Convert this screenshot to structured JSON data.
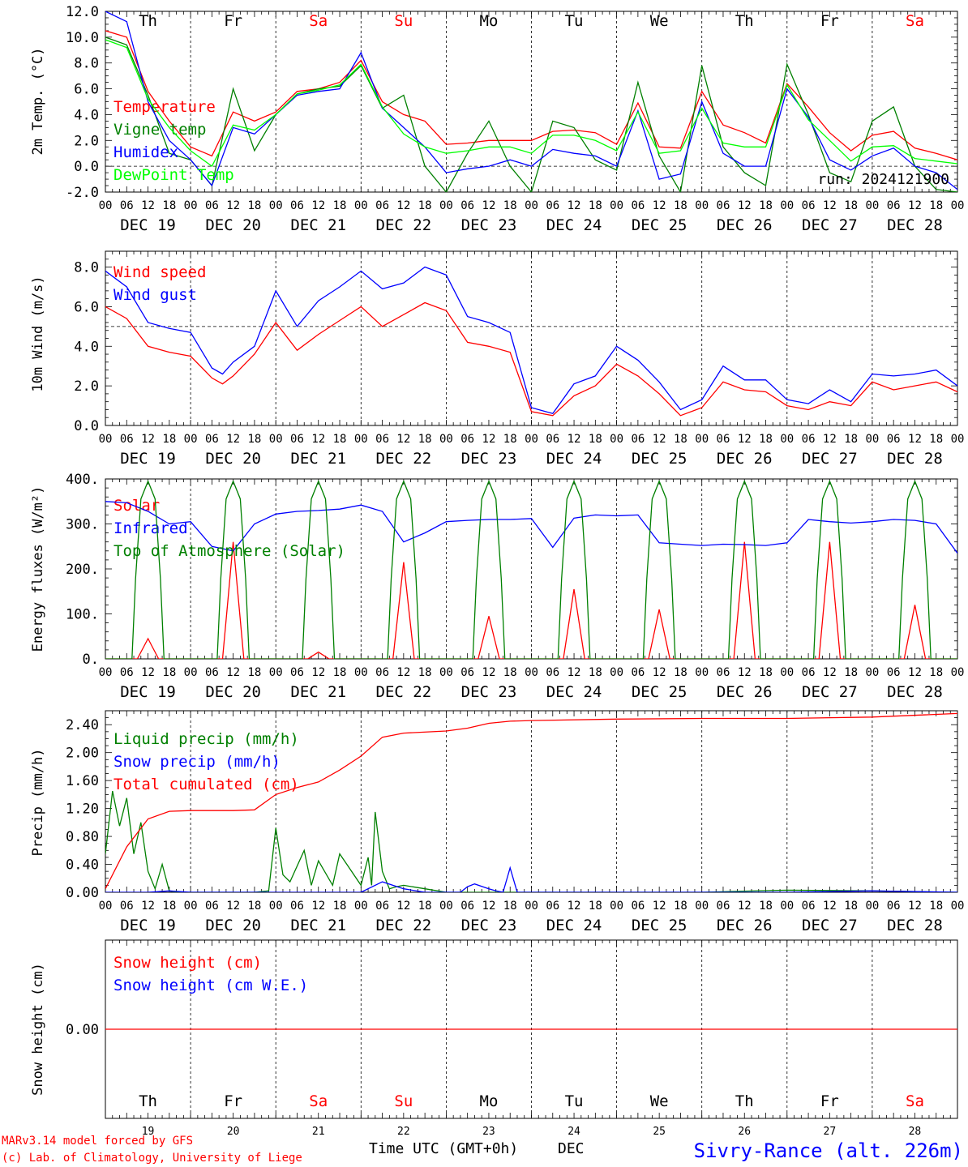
{
  "colors": {
    "red": "#ff0000",
    "dark_green": "#008000",
    "blue": "#0000ff",
    "light_green": "#00ff00",
    "black": "#000000"
  },
  "day_labels": [
    "Th",
    "Fr",
    "Sa",
    "Su",
    "Mo",
    "Tu",
    "We",
    "Th",
    "Fr",
    "Sa"
  ],
  "day_label_colors": [
    "black",
    "black",
    "red",
    "red",
    "black",
    "black",
    "black",
    "black",
    "black",
    "red"
  ],
  "date_labels": [
    "DEC 19",
    "DEC 20",
    "DEC 21",
    "DEC 22",
    "DEC 23",
    "DEC 24",
    "DEC 25",
    "DEC 26",
    "DEC 27",
    "DEC 28"
  ],
  "hour_labels": [
    "00",
    "06",
    "12",
    "18"
  ],
  "final_hour_label": "00",
  "bottom_day_numbers": [
    "19",
    "20",
    "21",
    "22",
    "23",
    "24",
    "25",
    "26",
    "27",
    "28"
  ],
  "footer": {
    "credit_line1": "MARv3.14 model forced by GFS",
    "credit_line2": "(c) Lab. of Climatology, University of Liege",
    "xaxis_title": "Time UTC (GMT+0h)",
    "xaxis_month": "DEC",
    "station": "Sivry-Rance (alt. 226m)"
  },
  "chart_data": [
    {
      "type": "line",
      "ylabel": "2m Temp. (°C)",
      "ylim": [
        -2,
        12
      ],
      "yticks": [
        "-2.0",
        "0.0",
        "2.0",
        "4.0",
        "6.0",
        "8.0",
        "10.0",
        "12.0"
      ],
      "ref_line": 0,
      "annotation": "run: 2024121900",
      "x_unit": "hours since DEC 19 00 UTC",
      "series": [
        {
          "name": "Temperature",
          "color": "red",
          "x": [
            0,
            6,
            12,
            18,
            24,
            30,
            36,
            42,
            48,
            54,
            60,
            66,
            72,
            78,
            84,
            90,
            96,
            102,
            108,
            114,
            120,
            126,
            132,
            138,
            144,
            150,
            156,
            162,
            168,
            174,
            180,
            186,
            192,
            198,
            204,
            210,
            216,
            222,
            228,
            234,
            240
          ],
          "y": [
            10.5,
            10.0,
            5.8,
            3.5,
            1.5,
            0.8,
            4.2,
            3.5,
            4.2,
            5.8,
            6.0,
            6.5,
            8.2,
            5.0,
            4.0,
            3.5,
            1.7,
            1.8,
            2.0,
            2.0,
            2.0,
            2.7,
            2.8,
            2.6,
            1.7,
            4.9,
            1.5,
            1.4,
            5.8,
            3.2,
            2.6,
            1.8,
            6.4,
            4.6,
            2.6,
            1.2,
            2.4,
            2.7,
            1.4,
            1.0,
            0.5
          ]
        },
        {
          "name": "Vigne temp",
          "color": "dark_green",
          "x": [
            0,
            6,
            12,
            18,
            24,
            30,
            36,
            42,
            48,
            54,
            60,
            66,
            72,
            78,
            84,
            90,
            96,
            102,
            108,
            114,
            120,
            126,
            132,
            138,
            144,
            150,
            156,
            162,
            168,
            174,
            180,
            186,
            192,
            198,
            204,
            210,
            216,
            222,
            228,
            234,
            240
          ],
          "y": [
            10.0,
            9.4,
            5.5,
            1.0,
            0.5,
            -1.5,
            6.0,
            1.2,
            4.0,
            5.6,
            6.0,
            6.2,
            7.8,
            4.5,
            5.5,
            0.0,
            -2.0,
            1.0,
            3.5,
            0.0,
            -2.0,
            3.5,
            3.0,
            0.5,
            -0.3,
            6.5,
            0.8,
            -2.0,
            7.8,
            1.5,
            -0.5,
            -1.5,
            7.9,
            4.0,
            -0.5,
            -1.2,
            3.5,
            4.6,
            0.0,
            -1.8,
            -2.0
          ]
        },
        {
          "name": "Humidex",
          "color": "blue",
          "x": [
            0,
            6,
            12,
            18,
            24,
            30,
            36,
            42,
            48,
            54,
            60,
            66,
            72,
            78,
            84,
            90,
            96,
            102,
            108,
            114,
            120,
            126,
            132,
            138,
            144,
            150,
            156,
            162,
            168,
            174,
            180,
            186,
            192,
            198,
            204,
            210,
            216,
            222,
            228,
            234,
            240
          ],
          "y": [
            12.0,
            11.2,
            5.0,
            2.0,
            0.5,
            -1.5,
            3.0,
            2.5,
            4.0,
            5.5,
            5.8,
            6.0,
            8.8,
            4.5,
            3.0,
            1.5,
            -0.5,
            -0.2,
            0.0,
            0.5,
            0.0,
            1.3,
            1.0,
            0.8,
            0.0,
            4.3,
            -1.0,
            -0.6,
            5.0,
            1.0,
            0.0,
            0.0,
            6.0,
            3.8,
            0.5,
            -0.3,
            0.8,
            1.4,
            0.0,
            -0.5,
            -1.8
          ]
        },
        {
          "name": "DewPoint Temp",
          "color": "light_green",
          "x": [
            0,
            6,
            12,
            18,
            24,
            30,
            36,
            42,
            48,
            54,
            60,
            66,
            72,
            78,
            84,
            90,
            96,
            102,
            108,
            114,
            120,
            126,
            132,
            138,
            144,
            150,
            156,
            162,
            168,
            174,
            180,
            186,
            192,
            198,
            204,
            210,
            216,
            222,
            228,
            234,
            240
          ],
          "y": [
            9.8,
            9.2,
            5.2,
            3.0,
            1.2,
            0.0,
            3.2,
            2.8,
            4.0,
            5.6,
            5.9,
            6.3,
            7.9,
            4.6,
            2.5,
            1.5,
            1.0,
            1.2,
            1.5,
            1.5,
            1.0,
            2.4,
            2.4,
            2.0,
            1.2,
            4.2,
            1.0,
            1.2,
            4.5,
            1.8,
            1.5,
            1.5,
            6.3,
            3.6,
            2.0,
            0.4,
            1.5,
            1.6,
            0.6,
            0.4,
            0.2
          ]
        }
      ]
    },
    {
      "type": "line",
      "ylabel": "10m Wind (m/s)",
      "ylim": [
        0,
        8.8
      ],
      "yticks": [
        "0.0",
        "2.0",
        "4.0",
        "6.0",
        "8.0"
      ],
      "ref_line": 5,
      "series": [
        {
          "name": "Wind speed",
          "color": "red",
          "x": [
            0,
            6,
            12,
            18,
            24,
            30,
            33,
            36,
            42,
            48,
            54,
            60,
            66,
            72,
            78,
            84,
            90,
            96,
            102,
            108,
            114,
            120,
            126,
            132,
            138,
            144,
            150,
            156,
            162,
            168,
            174,
            180,
            186,
            192,
            198,
            204,
            210,
            216,
            222,
            228,
            234,
            240
          ],
          "y": [
            6.0,
            5.4,
            4.0,
            3.7,
            3.5,
            2.4,
            2.1,
            2.5,
            3.6,
            5.2,
            3.8,
            4.6,
            5.3,
            6.0,
            5.0,
            5.6,
            6.2,
            5.8,
            4.2,
            4.0,
            3.7,
            0.7,
            0.5,
            1.5,
            2.0,
            3.1,
            2.5,
            1.6,
            0.5,
            0.9,
            2.2,
            1.8,
            1.7,
            1.0,
            0.8,
            1.2,
            1.0,
            2.2,
            1.8,
            2.0,
            2.2,
            1.7
          ]
        },
        {
          "name": "Wind gust",
          "color": "blue",
          "x": [
            0,
            6,
            12,
            18,
            24,
            30,
            33,
            36,
            42,
            48,
            54,
            60,
            66,
            72,
            78,
            84,
            90,
            96,
            102,
            108,
            114,
            120,
            126,
            132,
            138,
            144,
            150,
            156,
            162,
            168,
            174,
            180,
            186,
            192,
            198,
            204,
            210,
            216,
            222,
            228,
            234,
            240
          ],
          "y": [
            7.8,
            7.0,
            5.2,
            4.9,
            4.7,
            2.9,
            2.6,
            3.2,
            4.0,
            6.8,
            5.0,
            6.3,
            7.0,
            7.8,
            6.9,
            7.2,
            8.0,
            7.6,
            5.5,
            5.2,
            4.7,
            0.9,
            0.6,
            2.1,
            2.5,
            4.0,
            3.3,
            2.2,
            0.8,
            1.3,
            3.0,
            2.3,
            2.3,
            1.3,
            1.1,
            1.8,
            1.2,
            2.6,
            2.5,
            2.6,
            2.8,
            2.0
          ]
        }
      ]
    },
    {
      "type": "line",
      "ylabel": "Energy fluxes (W/m²)",
      "ylim": [
        0,
        400
      ],
      "yticks": [
        "0.",
        "100.",
        "200.",
        "300.",
        "400."
      ],
      "series": [
        {
          "name": "Solar",
          "color": "red",
          "peaks": [
            45,
            260,
            15,
            215,
            95,
            155,
            110,
            260,
            260,
            120
          ]
        },
        {
          "name": "Infrared",
          "color": "blue",
          "x": [
            0,
            6,
            12,
            18,
            24,
            30,
            36,
            42,
            48,
            54,
            60,
            66,
            72,
            78,
            84,
            90,
            96,
            102,
            108,
            114,
            120,
            126,
            132,
            138,
            144,
            150,
            156,
            162,
            168,
            174,
            180,
            186,
            192,
            198,
            204,
            210,
            216,
            222,
            228,
            234,
            240
          ],
          "y": [
            350,
            347,
            328,
            300,
            305,
            250,
            240,
            300,
            322,
            328,
            330,
            333,
            342,
            328,
            260,
            280,
            305,
            308,
            310,
            310,
            312,
            248,
            313,
            320,
            318,
            320,
            258,
            255,
            252,
            255,
            254,
            252,
            258,
            310,
            305,
            302,
            305,
            310,
            308,
            300,
            235
          ]
        },
        {
          "name": "Top of Atmosphere (Solar)",
          "color": "dark_green",
          "peaks": [
            395,
            395,
            395,
            395,
            395,
            395,
            395,
            395,
            395,
            395
          ]
        }
      ]
    },
    {
      "type": "line",
      "ylabel": "Precip (mm/h)",
      "ylim": [
        0,
        2.6
      ],
      "yticks": [
        "0.00",
        "0.40",
        "0.80",
        "1.20",
        "1.60",
        "2.00",
        "2.40"
      ],
      "series": [
        {
          "name": "Liquid precip (mm/h)",
          "color": "dark_green",
          "x": [
            0,
            2,
            4,
            6,
            8,
            10,
            12,
            14,
            16,
            18,
            20,
            24,
            30,
            36,
            42,
            46,
            48,
            50,
            52,
            56,
            58,
            60,
            64,
            66,
            68,
            72,
            74,
            75,
            76,
            78,
            80,
            82,
            84,
            90,
            96,
            108,
            114,
            120,
            144,
            168,
            192,
            216,
            240
          ],
          "y": [
            0.55,
            1.45,
            0.95,
            1.35,
            0.55,
            1.0,
            0.3,
            0.05,
            0.4,
            0.02,
            0.0,
            0.0,
            0.0,
            0.0,
            0.0,
            0.02,
            0.92,
            0.25,
            0.15,
            0.6,
            0.1,
            0.45,
            0.1,
            0.55,
            0.4,
            0.1,
            0.5,
            0.1,
            1.15,
            0.3,
            0.05,
            0.08,
            0.1,
            0.05,
            0.0,
            0.0,
            0.0,
            0.0,
            0.0,
            0.0,
            0.03,
            0.02,
            0.0
          ]
        },
        {
          "name": "Snow precip (mm/h)",
          "color": "blue",
          "x": [
            0,
            12,
            18,
            24,
            72,
            78,
            84,
            90,
            100,
            102,
            104,
            108,
            110,
            112,
            114,
            116,
            120,
            144,
            168,
            192,
            216,
            240
          ],
          "y": [
            0.0,
            0.0,
            0.02,
            0.0,
            0.0,
            0.15,
            0.05,
            0.0,
            0.0,
            0.08,
            0.12,
            0.05,
            0.02,
            0.0,
            0.35,
            0.0,
            0.0,
            0.0,
            0.0,
            0.0,
            0.02,
            0.0
          ]
        },
        {
          "name": "Total cumulated (cm)",
          "color": "red",
          "x": [
            0,
            6,
            12,
            18,
            24,
            36,
            42,
            48,
            54,
            60,
            66,
            72,
            78,
            84,
            96,
            102,
            108,
            114,
            120,
            144,
            168,
            192,
            216,
            240
          ],
          "y": [
            0.05,
            0.65,
            1.05,
            1.16,
            1.17,
            1.17,
            1.18,
            1.4,
            1.5,
            1.58,
            1.75,
            1.95,
            2.22,
            2.28,
            2.31,
            2.35,
            2.42,
            2.45,
            2.46,
            2.48,
            2.49,
            2.49,
            2.51,
            2.56
          ]
        }
      ]
    },
    {
      "type": "line",
      "ylabel": "Snow height (cm)",
      "yticks": [
        "0.00"
      ],
      "series": [
        {
          "name": "Snow height (cm)",
          "color": "red",
          "x": [
            0,
            240
          ],
          "y": [
            0,
            0
          ]
        },
        {
          "name": "Snow height (cm W.E.)",
          "color": "blue",
          "x": [],
          "y": []
        }
      ]
    }
  ]
}
